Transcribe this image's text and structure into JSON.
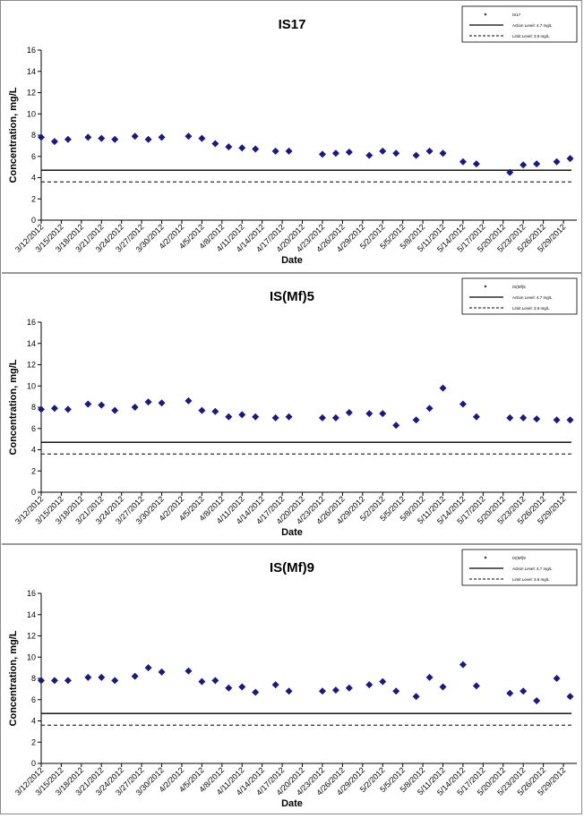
{
  "x_ticks": [
    "3/12/2012",
    "3/15/2012",
    "3/18/2012",
    "3/21/2012",
    "3/24/2012",
    "3/27/2012",
    "3/30/2012",
    "4/2/2012",
    "4/5/2012",
    "4/8/2012",
    "4/11/2012",
    "4/14/2012",
    "4/17/2012",
    "4/20/2012",
    "4/23/2012",
    "4/26/2012",
    "4/29/2012",
    "5/2/2012",
    "5/5/2012",
    "5/8/2012",
    "5/11/2012",
    "5/14/2012",
    "5/17/2012",
    "5/20/2012",
    "5/23/2012",
    "5/26/2012",
    "5/29/2012"
  ],
  "chart_data": [
    {
      "type": "scatter",
      "title": "IS17",
      "xlabel": "Date",
      "ylabel": "Concentration, mg/L",
      "ylim": [
        0,
        16
      ],
      "yticks": [
        0,
        2,
        4,
        6,
        8,
        10,
        12,
        14,
        16
      ],
      "xlim": [
        "3/12/2012",
        "5/31/2012"
      ],
      "grid": false,
      "legend_position": "top-right",
      "marker_color": "#1a1a7e",
      "series": [
        {
          "name": "IS17",
          "points": [
            [
              "3/12/2012",
              7.8
            ],
            [
              "3/14/2012",
              7.4
            ],
            [
              "3/16/2012",
              7.6
            ],
            [
              "3/19/2012",
              7.8
            ],
            [
              "3/21/2012",
              7.7
            ],
            [
              "3/23/2012",
              7.6
            ],
            [
              "3/26/2012",
              7.9
            ],
            [
              "3/28/2012",
              7.6
            ],
            [
              "3/30/2012",
              7.8
            ],
            [
              "4/3/2012",
              7.9
            ],
            [
              "4/5/2012",
              7.7
            ],
            [
              "4/7/2012",
              7.2
            ],
            [
              "4/9/2012",
              6.9
            ],
            [
              "4/11/2012",
              6.8
            ],
            [
              "4/13/2012",
              6.7
            ],
            [
              "4/16/2012",
              6.5
            ],
            [
              "4/18/2012",
              6.5
            ],
            [
              "4/23/2012",
              6.2
            ],
            [
              "4/25/2012",
              6.3
            ],
            [
              "4/27/2012",
              6.4
            ],
            [
              "4/30/2012",
              6.1
            ],
            [
              "5/2/2012",
              6.5
            ],
            [
              "5/4/2012",
              6.3
            ],
            [
              "5/7/2012",
              6.1
            ],
            [
              "5/9/2012",
              6.5
            ],
            [
              "5/11/2012",
              6.3
            ],
            [
              "5/14/2012",
              5.5
            ],
            [
              "5/16/2012",
              5.3
            ],
            [
              "5/21/2012",
              4.5
            ],
            [
              "5/23/2012",
              5.2
            ],
            [
              "5/25/2012",
              5.3
            ],
            [
              "5/28/2012",
              5.5
            ],
            [
              "5/30/2012",
              5.8
            ]
          ]
        },
        {
          "name": "Action Level: 4.7 mg/L",
          "style": "solid",
          "value": 4.7
        },
        {
          "name": "Limit Level: 3.6 mg/L",
          "style": "dashed",
          "value": 3.6
        }
      ]
    },
    {
      "type": "scatter",
      "title": "IS(Mf)5",
      "xlabel": "Date",
      "ylabel": "Concentration, mg/L",
      "ylim": [
        0,
        16
      ],
      "yticks": [
        0,
        2,
        4,
        6,
        8,
        10,
        12,
        14,
        16
      ],
      "xlim": [
        "3/12/2012",
        "5/31/2012"
      ],
      "grid": false,
      "legend_position": "top-right",
      "marker_color": "#1a1a7e",
      "series": [
        {
          "name": "IS(Mf)5",
          "points": [
            [
              "3/12/2012",
              7.8
            ],
            [
              "3/14/2012",
              7.9
            ],
            [
              "3/16/2012",
              7.8
            ],
            [
              "3/19/2012",
              8.3
            ],
            [
              "3/21/2012",
              8.2
            ],
            [
              "3/23/2012",
              7.7
            ],
            [
              "3/26/2012",
              8.0
            ],
            [
              "3/28/2012",
              8.5
            ],
            [
              "3/30/2012",
              8.4
            ],
            [
              "4/3/2012",
              8.6
            ],
            [
              "4/5/2012",
              7.7
            ],
            [
              "4/7/2012",
              7.6
            ],
            [
              "4/9/2012",
              7.1
            ],
            [
              "4/11/2012",
              7.3
            ],
            [
              "4/13/2012",
              7.1
            ],
            [
              "4/16/2012",
              7.0
            ],
            [
              "4/18/2012",
              7.1
            ],
            [
              "4/23/2012",
              7.0
            ],
            [
              "4/25/2012",
              7.0
            ],
            [
              "4/27/2012",
              7.5
            ],
            [
              "4/30/2012",
              7.4
            ],
            [
              "5/2/2012",
              7.4
            ],
            [
              "5/4/2012",
              6.3
            ],
            [
              "5/7/2012",
              6.8
            ],
            [
              "5/9/2012",
              7.9
            ],
            [
              "5/11/2012",
              9.8
            ],
            [
              "5/14/2012",
              8.3
            ],
            [
              "5/16/2012",
              7.1
            ],
            [
              "5/21/2012",
              7.0
            ],
            [
              "5/23/2012",
              7.0
            ],
            [
              "5/25/2012",
              6.9
            ],
            [
              "5/28/2012",
              6.8
            ],
            [
              "5/30/2012",
              6.8
            ]
          ]
        },
        {
          "name": "Action Level: 4.7 mg/L",
          "style": "solid",
          "value": 4.7
        },
        {
          "name": "Limit Level: 3.6 mg/L",
          "style": "dashed",
          "value": 3.6
        }
      ]
    },
    {
      "type": "scatter",
      "title": "IS(Mf)9",
      "xlabel": "Date",
      "ylabel": "Concentration, mg/L",
      "ylim": [
        0,
        16
      ],
      "yticks": [
        0,
        2,
        4,
        6,
        8,
        10,
        12,
        14,
        16
      ],
      "xlim": [
        "3/12/2012",
        "5/31/2012"
      ],
      "grid": false,
      "legend_position": "top-right",
      "marker_color": "#1a1a7e",
      "series": [
        {
          "name": "IS(Mf)9",
          "points": [
            [
              "3/12/2012",
              7.8
            ],
            [
              "3/14/2012",
              7.8
            ],
            [
              "3/16/2012",
              7.8
            ],
            [
              "3/19/2012",
              8.1
            ],
            [
              "3/21/2012",
              8.1
            ],
            [
              "3/23/2012",
              7.8
            ],
            [
              "3/26/2012",
              8.2
            ],
            [
              "3/28/2012",
              9.0
            ],
            [
              "3/30/2012",
              8.6
            ],
            [
              "4/3/2012",
              8.7
            ],
            [
              "4/5/2012",
              7.7
            ],
            [
              "4/7/2012",
              7.8
            ],
            [
              "4/9/2012",
              7.1
            ],
            [
              "4/11/2012",
              7.2
            ],
            [
              "4/13/2012",
              6.7
            ],
            [
              "4/16/2012",
              7.4
            ],
            [
              "4/18/2012",
              6.8
            ],
            [
              "4/23/2012",
              6.8
            ],
            [
              "4/25/2012",
              6.9
            ],
            [
              "4/27/2012",
              7.1
            ],
            [
              "4/30/2012",
              7.4
            ],
            [
              "5/2/2012",
              7.7
            ],
            [
              "5/4/2012",
              6.8
            ],
            [
              "5/7/2012",
              6.3
            ],
            [
              "5/9/2012",
              8.1
            ],
            [
              "5/11/2012",
              7.2
            ],
            [
              "5/14/2012",
              9.3
            ],
            [
              "5/16/2012",
              7.3
            ],
            [
              "5/21/2012",
              6.6
            ],
            [
              "5/23/2012",
              6.8
            ],
            [
              "5/25/2012",
              5.9
            ],
            [
              "5/28/2012",
              8.0
            ],
            [
              "5/30/2012",
              6.3
            ]
          ]
        },
        {
          "name": "Action Level: 4.7 mg/L",
          "style": "solid",
          "value": 4.7
        },
        {
          "name": "Limit Level: 3.6 mg/L",
          "style": "dashed",
          "value": 3.6
        }
      ]
    }
  ]
}
